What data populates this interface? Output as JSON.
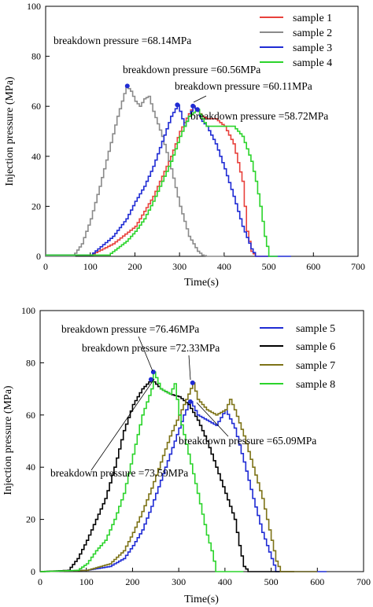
{
  "chart_data": [
    {
      "type": "line",
      "xlabel": "Time(s)",
      "ylabel": "Injection pressure (MPa)",
      "xlim": [
        0,
        700
      ],
      "ylim": [
        0,
        100
      ],
      "xticks": [
        0,
        100,
        200,
        300,
        400,
        500,
        600,
        700
      ],
      "yticks": [
        0,
        20,
        40,
        60,
        80,
        100
      ],
      "legend_position": "top-right",
      "series": [
        {
          "name": "sample 1",
          "color": "#e8413c",
          "x": [
            0,
            100,
            150,
            200,
            240,
            280,
            300,
            320,
            330,
            340,
            350,
            360,
            380,
            400,
            420,
            440,
            450,
            460,
            470,
            500
          ],
          "y": [
            0.5,
            0.5,
            5,
            12,
            24,
            40,
            50,
            57,
            60.11,
            58,
            56,
            55,
            55,
            52,
            45,
            30,
            10,
            2,
            0,
            0
          ]
        },
        {
          "name": "sample 2",
          "color": "#8a8a8a",
          "x": [
            0,
            60,
            80,
            100,
            120,
            140,
            160,
            180,
            190,
            200,
            210,
            220,
            230,
            240,
            260,
            280,
            300,
            320,
            340,
            350,
            360,
            380,
            400
          ],
          "y": [
            0,
            0,
            5,
            15,
            28,
            42,
            56,
            68.14,
            66,
            62,
            60,
            63,
            64,
            58,
            48,
            35,
            20,
            8,
            2,
            0.5,
            0,
            0,
            0
          ]
        },
        {
          "name": "sample 3",
          "color": "#1f2bd4",
          "x": [
            0,
            100,
            150,
            180,
            200,
            220,
            240,
            260,
            280,
            295,
            300,
            310,
            320,
            330,
            340,
            350,
            360,
            380,
            400,
            420,
            440,
            460,
            470,
            550
          ],
          "y": [
            0.5,
            0.5,
            8,
            15,
            22,
            28,
            36,
            46,
            56,
            60.56,
            58,
            52,
            56,
            60,
            58,
            54,
            52,
            45,
            35,
            24,
            12,
            3,
            0,
            0
          ]
        },
        {
          "name": "sample 4",
          "color": "#2bd42b",
          "x": [
            0,
            140,
            180,
            200,
            220,
            240,
            260,
            280,
            300,
            320,
            340,
            350,
            360,
            380,
            400,
            420,
            440,
            460,
            470,
            480,
            490,
            500,
            520
          ],
          "y": [
            0.5,
            0.5,
            6,
            10,
            15,
            22,
            30,
            38,
            48,
            56,
            58.72,
            55,
            52,
            52,
            52,
            52,
            48,
            38,
            30,
            20,
            8,
            0,
            0
          ]
        }
      ],
      "annotations": [
        {
          "text": "breakdown pressure =68.14MPa",
          "x": 183,
          "y": 68.14,
          "color": "#1f2bd4"
        },
        {
          "text": "breakdown pressure =60.56MPa",
          "x": 295,
          "y": 60.56,
          "color": "#1f2bd4"
        },
        {
          "text": "breakdown pressure =60.11MPa",
          "x": 330,
          "y": 60.11,
          "color": "#1f2bd4"
        },
        {
          "text": "breakdown pressure =58.72MPa",
          "x": 340,
          "y": 58.72,
          "color": "#1f2bd4"
        }
      ]
    },
    {
      "type": "line",
      "xlabel": "Time(s)",
      "ylabel": "Injection pressure (MPa)",
      "xlim": [
        0,
        700
      ],
      "ylim": [
        0,
        100
      ],
      "xticks": [
        0,
        100,
        200,
        300,
        400,
        500,
        600,
        700
      ],
      "yticks": [
        0,
        20,
        40,
        60,
        80,
        100
      ],
      "legend_position": "top-right",
      "series": [
        {
          "name": "sample 5",
          "color": "#1f2bd4",
          "x": [
            0,
            100,
            150,
            180,
            200,
            220,
            240,
            260,
            280,
            300,
            310,
            320,
            325,
            340,
            360,
            380,
            400,
            420,
            440,
            460,
            480,
            500,
            510,
            620
          ],
          "y": [
            0,
            0.5,
            2,
            5,
            10,
            16,
            25,
            35,
            45,
            55,
            60,
            64,
            65.09,
            60,
            58,
            56,
            62,
            55,
            42,
            28,
            15,
            5,
            0,
            0
          ]
        },
        {
          "name": "sample 6",
          "color": "#000000",
          "x": [
            0,
            60,
            80,
            100,
            120,
            140,
            160,
            180,
            200,
            220,
            240,
            260,
            280,
            300,
            320,
            340,
            360,
            380,
            400,
            420,
            430,
            440,
            450,
            550
          ],
          "y": [
            0,
            0.5,
            5,
            12,
            20,
            28,
            40,
            54,
            64,
            70,
            73.59,
            70,
            68,
            67,
            64,
            58,
            50,
            40,
            30,
            20,
            10,
            2,
            0,
            0
          ]
        },
        {
          "name": "sample 7",
          "color": "#7d7317",
          "x": [
            0,
            100,
            150,
            180,
            200,
            220,
            240,
            260,
            280,
            300,
            320,
            330,
            340,
            360,
            380,
            400,
            410,
            420,
            440,
            460,
            480,
            500,
            510,
            520,
            600
          ],
          "y": [
            0,
            0.5,
            3,
            8,
            15,
            23,
            32,
            42,
            52,
            60,
            68,
            72.33,
            66,
            62,
            60,
            62,
            66,
            62,
            52,
            40,
            28,
            12,
            4,
            0,
            0
          ]
        },
        {
          "name": "sample 8",
          "color": "#2bd42b",
          "x": [
            0,
            80,
            100,
            120,
            140,
            160,
            180,
            200,
            220,
            240,
            245,
            260,
            280,
            290,
            300,
            320,
            340,
            360,
            370,
            380,
            400,
            420,
            440
          ],
          "y": [
            0,
            0.5,
            3,
            8,
            12,
            20,
            30,
            45,
            60,
            70,
            76.46,
            70,
            68,
            72,
            60,
            45,
            30,
            14,
            8,
            0,
            0,
            0,
            0
          ]
        }
      ],
      "annotations": [
        {
          "text": "breakdown pressure =76.46MPa",
          "x": 245,
          "y": 76.46,
          "color": "#1f2bd4"
        },
        {
          "text": "breakdown pressure =72.33MPa",
          "x": 330,
          "y": 72.33,
          "color": "#1f2bd4"
        },
        {
          "text": "breakdown pressure =65.09MPa",
          "x": 325,
          "y": 65.09,
          "color": "#1f2bd4"
        },
        {
          "text": "breakdown pressure =73.59MPa",
          "x": 240,
          "y": 73.59,
          "color": "#1f2bd4"
        }
      ]
    }
  ]
}
